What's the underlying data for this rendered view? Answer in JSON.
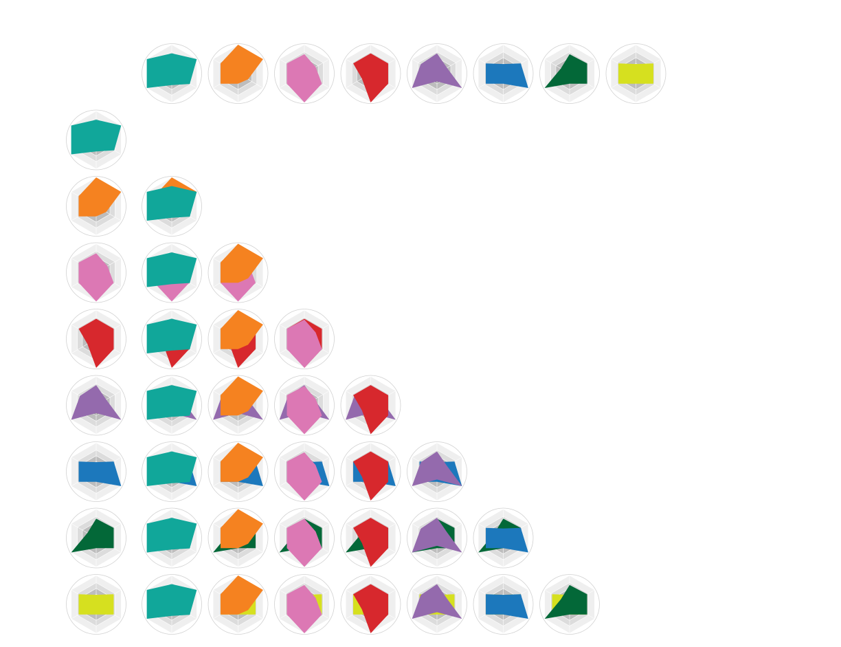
{
  "chart_data": {
    "type": "radar",
    "rlim": [
      0,
      1
    ],
    "rticks": [
      0.35,
      0.55,
      0.75,
      1
    ],
    "series": [
      {
        "color": "#11a79a",
        "values": [
          0.7,
          1.0,
          0.72,
          0.4,
          1.0,
          1.0
        ]
      },
      {
        "color": "#f58220",
        "values": [
          1.0,
          1.0,
          0.4,
          0.35,
          0.7,
          0.7
        ]
      },
      {
        "color": "#dc78b4",
        "values": [
          0.67,
          0.45,
          0.7,
          1.0,
          0.7,
          0.7
        ]
      },
      {
        "color": "#d7282d",
        "values": [
          0.7,
          0.7,
          0.7,
          1.0,
          0.35,
          0.7
        ]
      },
      {
        "color": "#946aad",
        "values": [
          0.7,
          0.4,
          1.0,
          0.27,
          1.0,
          0.65
        ]
      },
      {
        "color": "#1c78bc",
        "values": [
          0.33,
          0.7,
          1.0,
          0.35,
          0.7,
          0.7
        ]
      },
      {
        "color": "#036838",
        "values": [
          0.67,
          0.7,
          0.7,
          0.35,
          1.0,
          0.35
        ]
      },
      {
        "color": "#d6e01f",
        "values": [
          0.33,
          0.7,
          0.7,
          0.35,
          0.7,
          0.7
        ]
      }
    ]
  }
}
